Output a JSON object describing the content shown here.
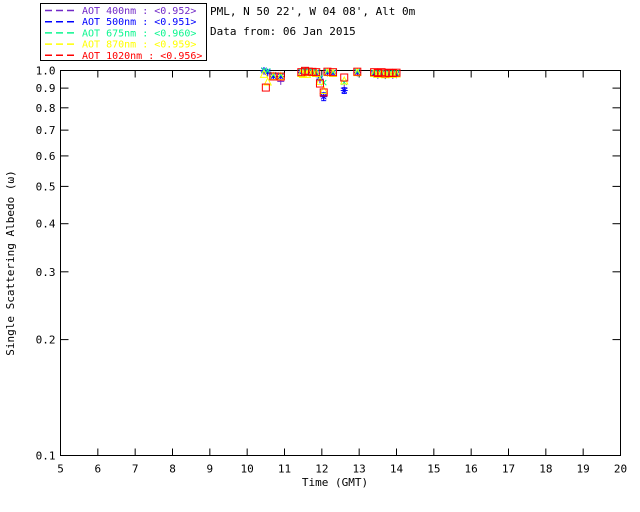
{
  "header": {
    "location_line": "PML, N 50 22', W 04 08', Alt 0m",
    "date_line": "Data from: 06 Jan 2015"
  },
  "chart_data": {
    "type": "scatter",
    "title": "",
    "xlabel": "Time (GMT)",
    "ylabel": "Single Scattering Albedo (ω)",
    "x_range": [
      5,
      20
    ],
    "y_range": [
      0.1,
      1.0
    ],
    "y_scale": "log",
    "x_ticks": [
      5,
      6,
      7,
      8,
      9,
      10,
      11,
      12,
      13,
      14,
      15,
      16,
      17,
      18,
      19,
      20
    ],
    "y_ticks": [
      1.0,
      0.9,
      0.8,
      0.7,
      0.6,
      0.5,
      0.4,
      0.3,
      0.2,
      0.1
    ],
    "grid": false,
    "legend_position": "top-left-outside",
    "background": "#ffffff",
    "axis_color": "#000000",
    "series": [
      {
        "name": "AOT  400nm",
        "mean_label": "<0.952>",
        "color": "#7129C8",
        "marker": "plus",
        "points": [
          [
            10.45,
            0.995
          ],
          [
            10.55,
            0.985
          ],
          [
            10.7,
            0.962
          ],
          [
            10.9,
            0.937
          ],
          [
            11.45,
            0.985
          ],
          [
            11.55,
            0.997
          ],
          [
            11.65,
            0.99
          ],
          [
            11.75,
            0.987
          ],
          [
            11.85,
            0.98
          ],
          [
            11.95,
            0.945
          ],
          [
            12.05,
            0.862
          ],
          [
            12.15,
            0.985
          ],
          [
            12.3,
            0.982
          ],
          [
            12.6,
            0.9
          ],
          [
            12.95,
            0.985
          ],
          [
            13.4,
            0.978
          ],
          [
            13.5,
            0.972
          ],
          [
            13.6,
            0.978
          ],
          [
            13.7,
            0.97
          ],
          [
            13.8,
            0.975
          ],
          [
            13.9,
            0.972
          ],
          [
            14.0,
            0.975
          ]
        ]
      },
      {
        "name": "AOT  500nm",
        "mean_label": "<0.951>",
        "color": "#0000FF",
        "marker": "asterisk",
        "points": [
          [
            10.45,
            1.0
          ],
          [
            10.55,
            0.99
          ],
          [
            10.7,
            0.967
          ],
          [
            10.9,
            0.965
          ],
          [
            11.45,
            0.99
          ],
          [
            11.55,
            1.0
          ],
          [
            11.65,
            0.995
          ],
          [
            11.75,
            0.99
          ],
          [
            11.85,
            0.985
          ],
          [
            11.95,
            0.95
          ],
          [
            12.05,
            0.855,
            0.02
          ],
          [
            12.15,
            0.99
          ],
          [
            12.3,
            0.985
          ],
          [
            12.6,
            0.887,
            0.015
          ],
          [
            12.95,
            0.99
          ],
          [
            13.4,
            0.98,
            0.008
          ],
          [
            13.5,
            0.975,
            0.008
          ],
          [
            13.6,
            0.98,
            0.008
          ],
          [
            13.7,
            0.973,
            0.008
          ],
          [
            13.8,
            0.978,
            0.008
          ],
          [
            13.9,
            0.975,
            0.008
          ],
          [
            14.0,
            0.978
          ]
        ]
      },
      {
        "name": "AOT  675nm",
        "mean_label": "<0.960>",
        "color": "#0BF68F",
        "marker": "x",
        "points": [
          [
            10.45,
            1.002
          ],
          [
            10.55,
            0.997
          ],
          [
            10.7,
            0.975
          ],
          [
            10.9,
            0.973
          ],
          [
            11.45,
            0.995
          ],
          [
            11.55,
            1.003
          ],
          [
            11.65,
            1.0
          ],
          [
            11.75,
            0.995
          ],
          [
            11.85,
            0.99
          ],
          [
            11.95,
            0.957
          ],
          [
            12.05,
            0.93
          ],
          [
            12.15,
            0.995
          ],
          [
            12.3,
            0.99
          ],
          [
            12.6,
            0.931
          ],
          [
            12.95,
            0.995
          ],
          [
            13.4,
            0.988
          ],
          [
            13.5,
            0.982
          ],
          [
            13.6,
            0.988
          ],
          [
            13.7,
            0.98
          ],
          [
            13.8,
            0.985
          ],
          [
            13.9,
            0.982
          ],
          [
            14.0,
            0.985
          ]
        ]
      },
      {
        "name": "AOT  870nm",
        "mean_label": "<0.959>",
        "color": "#FFFF00",
        "marker": "triangle",
        "points": [
          [
            10.45,
            0.98
          ],
          [
            10.55,
            0.936
          ],
          [
            10.7,
            0.968
          ],
          [
            10.9,
            0.968
          ],
          [
            11.45,
            0.985
          ],
          [
            11.5,
            0.98
          ],
          [
            11.6,
            0.98
          ],
          [
            11.65,
            0.99
          ],
          [
            11.75,
            0.99
          ],
          [
            11.85,
            0.985
          ],
          [
            11.95,
            0.94
          ],
          [
            12.05,
            0.89
          ],
          [
            12.15,
            0.99
          ],
          [
            12.3,
            0.985
          ],
          [
            12.6,
            0.942
          ],
          [
            12.95,
            0.99
          ],
          [
            13.4,
            0.985
          ],
          [
            13.5,
            0.98
          ],
          [
            13.6,
            0.985
          ],
          [
            13.7,
            0.978
          ],
          [
            13.8,
            0.982
          ],
          [
            13.9,
            0.98
          ],
          [
            14.0,
            0.982
          ]
        ]
      },
      {
        "name": "AOT 1020nm",
        "mean_label": "<0.956>",
        "color": "#FF0000",
        "marker": "square",
        "points": [
          [
            10.5,
            0.903
          ],
          [
            10.7,
            0.965
          ],
          [
            10.9,
            0.964
          ],
          [
            11.45,
            0.99
          ],
          [
            11.55,
            0.998
          ],
          [
            11.65,
            0.993
          ],
          [
            11.75,
            0.992
          ],
          [
            11.85,
            0.99
          ],
          [
            11.95,
            0.925
          ],
          [
            12.05,
            0.877
          ],
          [
            12.15,
            0.993
          ],
          [
            12.3,
            0.99
          ],
          [
            12.6,
            0.959
          ],
          [
            12.95,
            0.993
          ],
          [
            13.4,
            0.99
          ],
          [
            13.5,
            0.985
          ],
          [
            13.6,
            0.99
          ],
          [
            13.7,
            0.983
          ],
          [
            13.8,
            0.987
          ],
          [
            13.9,
            0.985
          ],
          [
            14.0,
            0.987
          ]
        ]
      }
    ]
  }
}
